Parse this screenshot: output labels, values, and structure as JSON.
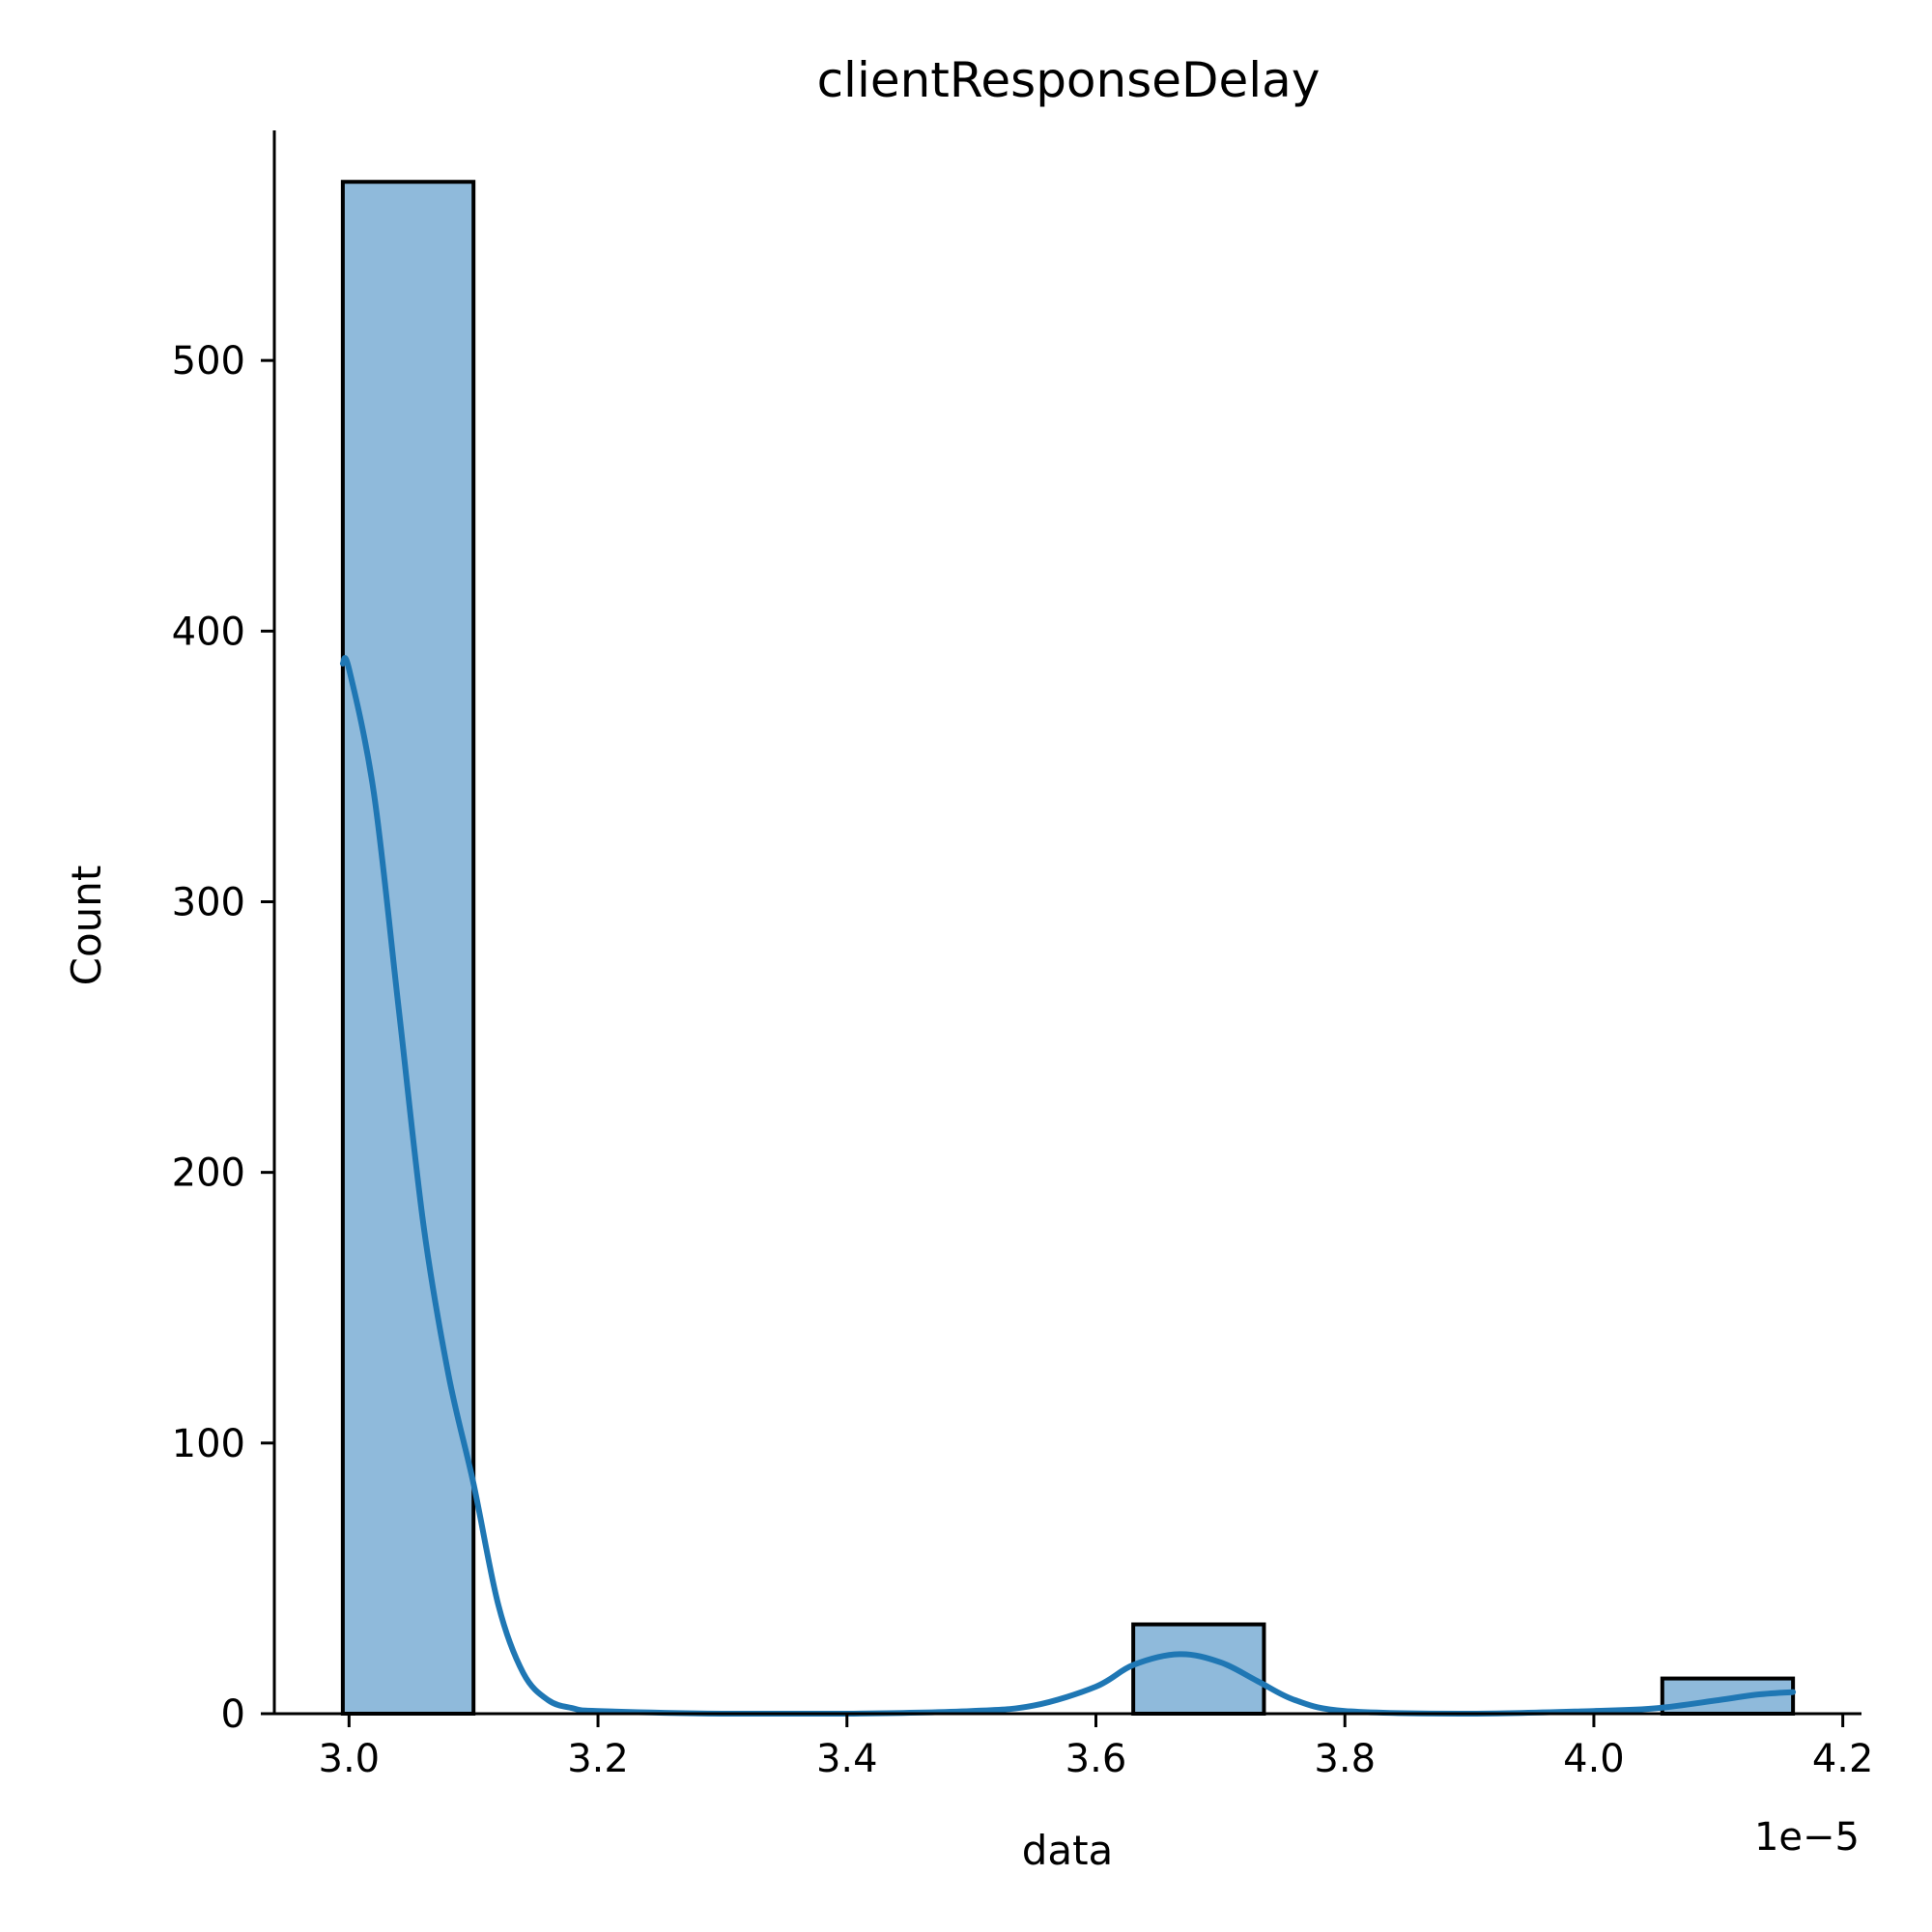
{
  "chart_data": {
    "type": "histogram",
    "title": "clientResponseDelay",
    "xlabel": "data",
    "ylabel": "Count",
    "x_offset_label": "1e−5",
    "xlim": [
      2.94,
      4.215
    ],
    "ylim": [
      0,
      585
    ],
    "x_ticks": [
      3.0,
      3.2,
      3.4,
      3.6,
      3.8,
      4.0,
      4.2
    ],
    "x_tick_labels": [
      "3.0",
      "3.2",
      "3.4",
      "3.6",
      "3.8",
      "4.0",
      "4.2"
    ],
    "y_ticks": [
      0,
      100,
      200,
      300,
      400,
      500
    ],
    "y_tick_labels": [
      "0",
      "100",
      "200",
      "300",
      "400",
      "500"
    ],
    "bins": [
      {
        "start": 2.995,
        "end": 3.1,
        "count": 566
      },
      {
        "start": 3.63,
        "end": 3.735,
        "count": 33
      },
      {
        "start": 4.055,
        "end": 4.16,
        "count": 13
      }
    ],
    "kde": {
      "x": [
        2.995,
        3.0,
        3.02,
        3.04,
        3.06,
        3.08,
        3.1,
        3.12,
        3.14,
        3.16,
        3.18,
        3.2,
        3.3,
        3.4,
        3.5,
        3.55,
        3.6,
        3.63,
        3.667,
        3.7,
        3.73,
        3.76,
        3.8,
        3.9,
        4.0,
        4.05,
        4.1,
        4.13,
        4.16
      ],
      "y": [
        388,
        386,
        340,
        260,
        180,
        125,
        85,
        40,
        15,
        5,
        2,
        1,
        0,
        0,
        1,
        3,
        10,
        18,
        22,
        19,
        12,
        5,
        1,
        0,
        1,
        2,
        5,
        7,
        8
      ]
    },
    "colors": {
      "bar_fill": "#8fbadb",
      "bar_edge": "#000000",
      "kde_line": "#1f77b4"
    },
    "grid": false
  }
}
